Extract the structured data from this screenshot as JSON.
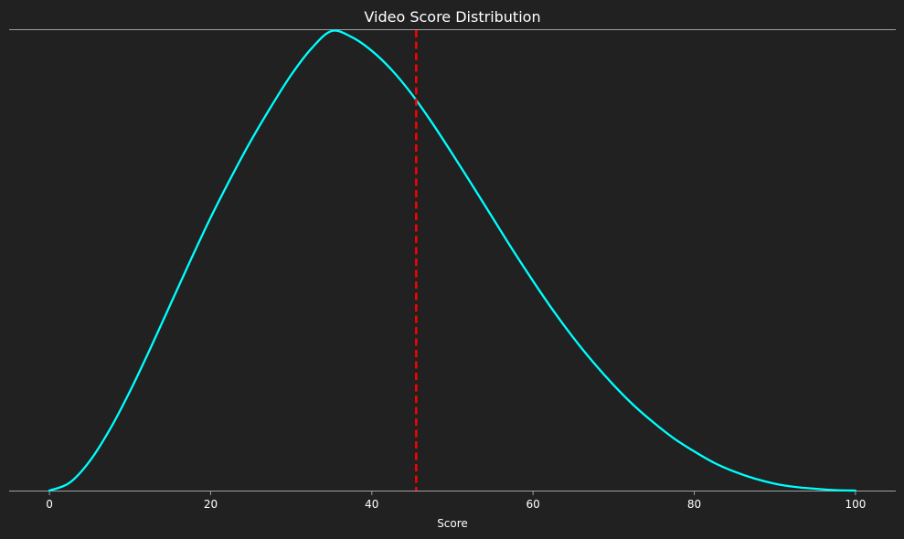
{
  "chart_data": {
    "type": "line",
    "title": "Video Score Distribution",
    "xlabel": "Score",
    "ylabel": "",
    "xlim": [
      -5,
      105
    ],
    "ylim": [
      0,
      1
    ],
    "xticks": [
      0,
      20,
      40,
      60,
      80,
      100
    ],
    "tick_labels": [
      "0",
      "20",
      "40",
      "60",
      "80",
      "100"
    ],
    "y_axis_visible": false,
    "grid": false,
    "series": [
      {
        "color": "#00ffff",
        "x": [
          0,
          2.5,
          5,
          7.5,
          10,
          12.5,
          15,
          17.5,
          20,
          22.5,
          25,
          27.5,
          30,
          32.5,
          35,
          37.5,
          40,
          42.5,
          45,
          47.5,
          50,
          52.5,
          55,
          57.5,
          60,
          62.5,
          65,
          67.5,
          70,
          72.5,
          75,
          77.5,
          80,
          82.5,
          85,
          87.5,
          90,
          92.5,
          95,
          97.5,
          100
        ],
        "y": [
          0.0,
          0.017,
          0.064,
          0.133,
          0.216,
          0.308,
          0.404,
          0.5,
          0.593,
          0.679,
          0.76,
          0.834,
          0.903,
          0.96,
          0.998,
          0.985,
          0.955,
          0.913,
          0.86,
          0.798,
          0.731,
          0.662,
          0.592,
          0.522,
          0.455,
          0.391,
          0.332,
          0.278,
          0.229,
          0.185,
          0.147,
          0.113,
          0.085,
          0.06,
          0.041,
          0.026,
          0.015,
          0.008,
          0.004,
          0.001,
          0.0
        ]
      }
    ],
    "reference_line": {
      "orientation": "vertical",
      "x": 45.5,
      "style": "dashed",
      "color": "#ff0000"
    },
    "colors": {
      "background": "#212121",
      "text": "#ffffff",
      "spine": "#a0a0a0",
      "curve": "#00ffff",
      "reference": "#ff0000"
    }
  }
}
